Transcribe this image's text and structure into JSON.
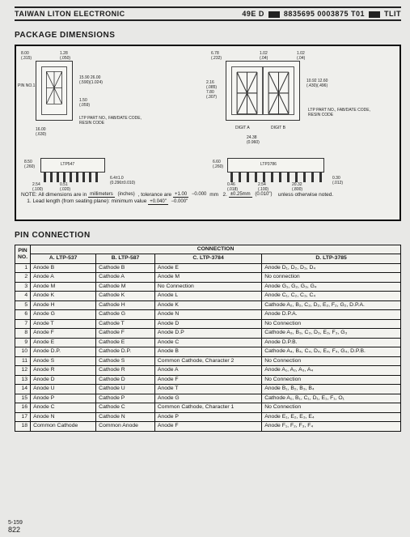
{
  "header": {
    "company": "TAIWAN LITON ELECTRONIC",
    "code1": "49E D",
    "code2": "8835695 0003875 T01",
    "code3": "TLIT"
  },
  "section_package": "PACKAGE DIMENSIONS",
  "section_pin": "PIN CONNECTION",
  "notes": {
    "note_label": "NOTE:",
    "note_text": "All dimensions are in",
    "unit_top": "millimeters",
    "unit_bot": "(inches)",
    "tol_label": ", tolerance are",
    "lead_label": "1.  Lead length (from seating plane): minimum value",
    "tol1_top": "+1.00",
    "tol1_bot": "−0.000",
    "tol1_unit": "mm",
    "tol1b_top": "+0.040\"",
    "tol1b_bot": "−0.000\"",
    "tol2_label": "2.",
    "tol2_top": "±0.25mm",
    "tol2_bot": "(0.010\")",
    "unless": "unless otherwise noted."
  },
  "dims": {
    "left_pkg_label": "PIN NO.1",
    "ltp_left": "LTP547",
    "ltp_right": "LTP3786",
    "digit_a": "DIGIT A",
    "digit_b": "DIGIT B",
    "part_note_r": "LTP PART NO., FAB/DATE CODE, RESIN CODE",
    "part_note_l": "LTP PART NO., FAB/DATE CODE, RESIN CODE"
  },
  "table": {
    "head_conn": "CONNECTION",
    "head_pin": "PIN NO.",
    "cols": [
      "A. LTP-537",
      "B. LTP-587",
      "C. LTP-3784",
      "D. LTP-3785"
    ],
    "rows": [
      [
        "1",
        "Anode B",
        "Cathode B",
        "Anode E",
        "Anode D₁, D₂, D₃, D₄"
      ],
      [
        "2",
        "Anode A",
        "Cathode A",
        "Anode M",
        "No connection"
      ],
      [
        "3",
        "Anode M",
        "Cathode M",
        "No Connection",
        "Anode G₁, G₂, G₃, G₄"
      ],
      [
        "4",
        "Anode K",
        "Cathode K",
        "Anode L",
        "Anode C₁, C₂, C₃, C₄"
      ],
      [
        "5",
        "Anode H",
        "Cathode H",
        "Anode K",
        "Cathode A₂, B₂, C₂, D₂, E₂, F₂, G₂, D.P.A."
      ],
      [
        "6",
        "Anode G",
        "Cathode G",
        "Anode N",
        "Anode D.P.A."
      ],
      [
        "7",
        "Anode T",
        "Cathode T",
        "Anode D",
        "No Connection"
      ],
      [
        "8",
        "Anode F",
        "Cathode F",
        "Anode D.P",
        "Cathode A₃, B₃, C₃, D₃, E₃, F₃, G₃"
      ],
      [
        "9",
        "Anode E",
        "Cathode E",
        "Anode C",
        "Anode D.P.B."
      ],
      [
        "10",
        "Anode D.P.",
        "Cathode D.P.",
        "Anode B",
        "Cathode A₄, B₄, C₄, D₄, E₄, F₄, G₄, D.P.B."
      ],
      [
        "11",
        "Anode S",
        "Cathode S",
        "Common Cathode, Character 2",
        "No Connection"
      ],
      [
        "12",
        "Anode R",
        "Cathode R",
        "Anode A",
        "Anode A₁, A₂, A₃, A₄"
      ],
      [
        "13",
        "Anode D",
        "Cathode D",
        "Anode F",
        "No Connection"
      ],
      [
        "14",
        "Anode U",
        "Cathode U",
        "Anode T",
        "Anode B₁, B₂, B₃, B₄"
      ],
      [
        "15",
        "Anode P",
        "Cathode P",
        "Anode G",
        "Cathode A₁, B₁, C₁, D₁, E₁, F₁, O₁"
      ],
      [
        "16",
        "Anode C",
        "Cathode C",
        "Common Cathode, Character 1",
        "No Connection"
      ],
      [
        "17",
        "Anode N",
        "Cathode N",
        "Anode P",
        "Anode E₁, E₂, E₃, E₄"
      ],
      [
        "18",
        "Common Cathode",
        "Common Anode",
        "Anode F",
        "Anode F₁, F₂, F₃, F₄"
      ]
    ]
  },
  "footer": {
    "code": "5-159",
    "page": "822"
  }
}
